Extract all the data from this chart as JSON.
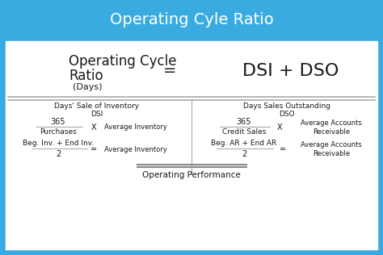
{
  "title": "Operating Cyle Ratio",
  "title_bg": "#3aabe0",
  "title_color": "#ffffff",
  "body_bg": "#3aabe0",
  "white_bg": "#ffffff",
  "main_label_line1": "Operating Cycle",
  "main_label_line2": "Ratio",
  "main_label_line3": "(Days)",
  "equals": "=",
  "rhs": "DSI + DSO",
  "separator_color": "#aaaaaa",
  "divider_color": "#aaaaaa",
  "dsi_title": "Days' Sale of Inventory",
  "dsi_abbr": "DSI",
  "dso_title": "Days Sales Outstanding",
  "dso_abbr": "DSO",
  "dsi_num": "365",
  "dsi_den": "Purchases",
  "dsi_x": "X",
  "dsi_avg": "Average Inventory",
  "dsi_beg": "Beg. Inv. + End Inv.",
  "dsi_div": "2",
  "dsi_eq": "=",
  "dsi_avg2": "Average Inventory",
  "dso_num": "365",
  "dso_den": "Credit Sales",
  "dso_x": "X",
  "dso_avg": "Average Accounts\nReceivable",
  "dso_beg": "Beg. AR + End AR",
  "dso_div": "2",
  "dso_eq": "=",
  "dso_avg2": "Average Accounts\nReceivable",
  "footer": "Operating Performance",
  "text_dark": "#1a1a1a",
  "line_color": "#aaaaaa",
  "footer_line_color": "#888888"
}
